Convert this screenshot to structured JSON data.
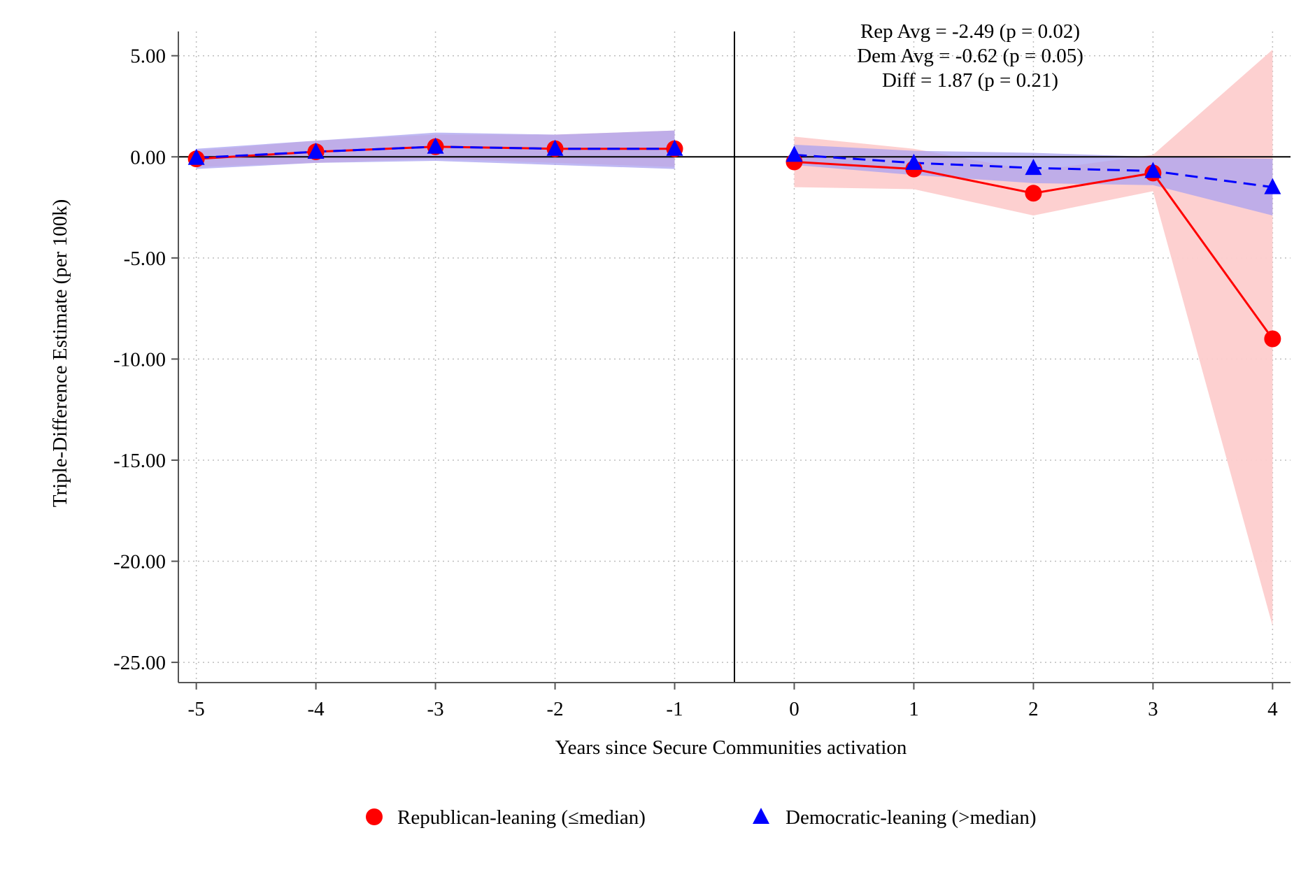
{
  "chart_data": {
    "type": "line",
    "title": "",
    "xlabel": "Years since Secure Communities activation",
    "ylabel": "Triple-Difference Estimate (per 100k)",
    "x": [
      -5,
      -4,
      -3,
      -2,
      -1,
      0,
      1,
      2,
      3,
      4
    ],
    "xticks": [
      "-5",
      "-4",
      "-3",
      "-2",
      "-1",
      "0",
      "1",
      "2",
      "3",
      "4"
    ],
    "xlim": [
      -5.15,
      4.15
    ],
    "ylim": [
      -26,
      6.2
    ],
    "yticks": [
      {
        "value": 5,
        "label": "5.00"
      },
      {
        "value": 0,
        "label": "0.00"
      },
      {
        "value": -5,
        "label": "-5.00"
      },
      {
        "value": -10,
        "label": "-10.00"
      },
      {
        "value": -15,
        "label": "-15.00"
      },
      {
        "value": -20,
        "label": "-20.00"
      },
      {
        "value": -25,
        "label": "-25.00"
      }
    ],
    "grid": true,
    "reference_lines": {
      "y": 0,
      "x": -0.5
    },
    "series": [
      {
        "name": "Republican-leaning (≤median)",
        "color": "#ff0000",
        "ci_color": "#fdcdcd",
        "marker": "circle",
        "line_style": "solid",
        "values": [
          -0.1,
          0.25,
          0.5,
          0.4,
          0.4,
          -0.25,
          -0.6,
          -1.8,
          -0.8,
          -9.0
        ],
        "ci_low": [
          -0.5,
          -0.3,
          -0.1,
          -0.3,
          -0.5,
          -1.5,
          -1.6,
          -2.9,
          -1.7,
          -23.2
        ],
        "ci_high": [
          0.3,
          0.8,
          1.1,
          1.1,
          1.3,
          1.0,
          0.4,
          -0.7,
          0.1,
          5.3
        ]
      },
      {
        "name": "Democratic-leaning (>median)",
        "color": "#0000ff",
        "ci_color": "#a9a2f0",
        "marker": "triangle",
        "line_style": "dashed",
        "values": [
          -0.05,
          0.25,
          0.5,
          0.4,
          0.4,
          0.1,
          -0.3,
          -0.55,
          -0.7,
          -1.5
        ],
        "ci_low": [
          -0.6,
          -0.3,
          -0.2,
          -0.4,
          -0.6,
          -0.4,
          -0.9,
          -1.3,
          -1.4,
          -2.9
        ],
        "ci_high": [
          0.4,
          0.8,
          1.2,
          1.1,
          1.3,
          0.6,
          0.3,
          0.2,
          0.0,
          -0.1
        ]
      }
    ],
    "annotations": [
      "Rep Avg = -2.49 (p = 0.02)",
      "Dem Avg = -0.62 (p = 0.05)",
      "Diff = 1.87 (p = 0.21)"
    ],
    "legend": {
      "placement": "bottom",
      "items": [
        "Republican-leaning (≤median)",
        "Democratic-leaning (>median)"
      ]
    }
  }
}
